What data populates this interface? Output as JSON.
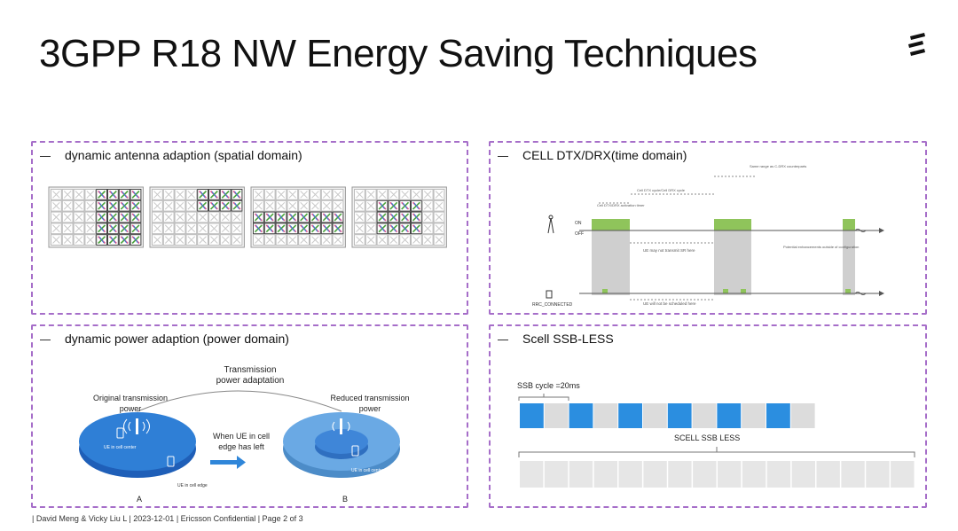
{
  "slide": {
    "title": "3GPP R18 NW Energy Saving Techniques",
    "logo_icon": "ericsson-logo-icon"
  },
  "panels": {
    "antenna": {
      "heading": "dynamic antenna adaption (spatial domain)",
      "arrays": [
        {
          "active_cols": [
            4,
            5,
            6,
            7
          ],
          "active_rows": [
            0,
            1,
            2,
            3,
            4
          ]
        },
        {
          "active_cols": [
            4,
            5,
            6,
            7
          ],
          "active_rows": [
            0,
            1
          ]
        },
        {
          "active_cols": [
            0,
            1,
            2,
            3,
            4,
            5,
            6,
            7
          ],
          "active_rows": [
            2,
            3
          ]
        },
        {
          "active_cols": [
            2,
            3,
            4,
            5
          ],
          "active_rows": [
            1,
            2,
            3
          ]
        }
      ]
    },
    "dtx": {
      "heading": "CELL DTX/DRX(time domain)",
      "state_on": "ON",
      "state_off": "OFF",
      "rrc_label": "RRC_CONNECTED",
      "annot_top": "Same range as C-DRX counterparts",
      "annot_cycle": "Cell DTX cycle/Cell DRX cycle",
      "annot_timer": "Cell DTX/DRX activation timer",
      "annot_no_ssb": "UE may not transmit SR here",
      "annot_no_sched": "UE will not be scheduled here",
      "annot_right": "Potential enhancements outside of configuration"
    },
    "power": {
      "heading": "dynamic power adaption (power domain)",
      "top_label_1": "Transmission",
      "top_label_2": "power adaptation",
      "left_label_1": "Original transmission",
      "left_label_2": "power",
      "right_label_1": "Reduced transmission",
      "right_label_2": "power",
      "middle_label_1": "When UE in cell",
      "middle_label_2": "edge has left",
      "ue_center_a": "UE in cell center",
      "ue_edge_a": "UE in cell edge",
      "ue_center_b": "UE in cell center",
      "letter_a": "A",
      "letter_b": "B"
    },
    "ssb": {
      "heading": "Scell  SSB-LESS",
      "cycle_label": "SSB cycle =20ms",
      "less_label": "SCELL SSB LESS",
      "blue_color": "#2b8ee0",
      "grey_color": "#dcdcdc"
    }
  },
  "footer": {
    "authors": "| David Meng & Vicky Liu L",
    "date": "|  2023-12-01",
    "conf": "|  Ericsson Confidential",
    "page": "|  Page 2 of 3"
  }
}
